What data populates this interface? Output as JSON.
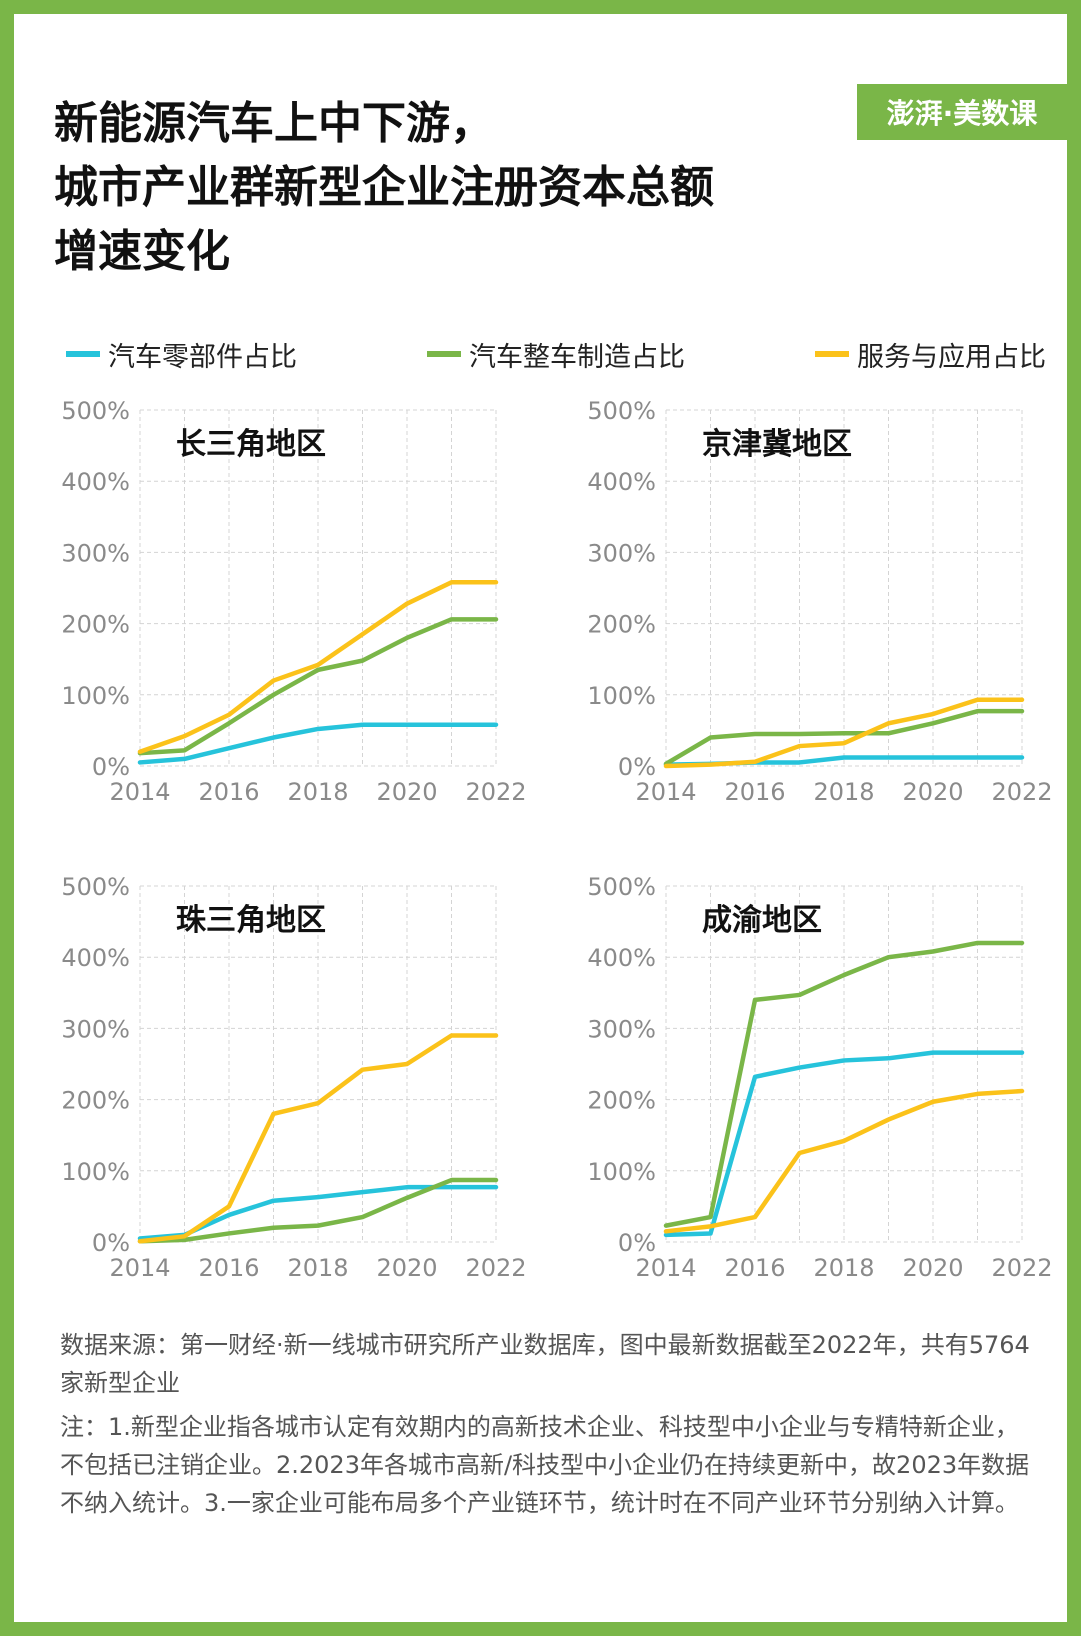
{
  "title_lines": [
    "新能源汽车上中下游，",
    "城市产业群新型企业注册资本总额",
    "增速变化"
  ],
  "brand": "澎湃·美数课",
  "colors": {
    "parts": "#26c3db",
    "vehicle": "#7ab648",
    "service": "#fbc21a",
    "frame": "#7ab648",
    "grid": "#d4d4d4"
  },
  "legend": [
    {
      "label": "汽车零部件占比",
      "color": "#26c3db"
    },
    {
      "label": "汽车整车制造占比",
      "color": "#7ab648"
    },
    {
      "label": "服务与应用占比",
      "color": "#fbc21a"
    }
  ],
  "chart_data": [
    {
      "type": "line",
      "title": "长三角地区",
      "x": [
        2014,
        2015,
        2016,
        2017,
        2018,
        2019,
        2020,
        2021,
        2022
      ],
      "xticks": [
        "2014",
        "2016",
        "2018",
        "2020",
        "2022"
      ],
      "yticks": [
        "0%",
        "100%",
        "200%",
        "300%",
        "400%",
        "500%"
      ],
      "ylim": [
        0,
        500
      ],
      "grid": true,
      "series": [
        {
          "name": "汽车零部件占比",
          "values": [
            5,
            10,
            25,
            40,
            52,
            58,
            58,
            58,
            58
          ]
        },
        {
          "name": "汽车整车制造占比",
          "values": [
            18,
            22,
            60,
            100,
            135,
            148,
            180,
            206,
            206
          ]
        },
        {
          "name": "服务与应用占比",
          "values": [
            20,
            42,
            72,
            120,
            142,
            185,
            228,
            258,
            258
          ]
        }
      ]
    },
    {
      "type": "line",
      "title": "京津冀地区",
      "x": [
        2014,
        2015,
        2016,
        2017,
        2018,
        2019,
        2020,
        2021,
        2022
      ],
      "xticks": [
        "2014",
        "2016",
        "2018",
        "2020",
        "2022"
      ],
      "yticks": [
        "0%",
        "100%",
        "200%",
        "300%",
        "400%",
        "500%"
      ],
      "ylim": [
        0,
        500
      ],
      "grid": true,
      "series": [
        {
          "name": "汽车零部件占比",
          "values": [
            2,
            3,
            5,
            5,
            12,
            12,
            12,
            12,
            12
          ]
        },
        {
          "name": "汽车整车制造占比",
          "values": [
            3,
            40,
            45,
            45,
            46,
            46,
            60,
            77,
            77
          ]
        },
        {
          "name": "服务与应用占比",
          "values": [
            0,
            2,
            6,
            28,
            32,
            60,
            73,
            93,
            93
          ]
        }
      ]
    },
    {
      "type": "line",
      "title": "珠三角地区",
      "x": [
        2014,
        2015,
        2016,
        2017,
        2018,
        2019,
        2020,
        2021,
        2022
      ],
      "xticks": [
        "2014",
        "2016",
        "2018",
        "2020",
        "2022"
      ],
      "yticks": [
        "0%",
        "100%",
        "200%",
        "300%",
        "400%",
        "500%"
      ],
      "ylim": [
        0,
        500
      ],
      "grid": true,
      "series": [
        {
          "name": "汽车零部件占比",
          "values": [
            5,
            10,
            38,
            58,
            63,
            70,
            77,
            77,
            77
          ]
        },
        {
          "name": "汽车整车制造占比",
          "values": [
            1,
            3,
            12,
            20,
            23,
            35,
            62,
            87,
            87
          ]
        },
        {
          "name": "服务与应用占比",
          "values": [
            1,
            8,
            50,
            180,
            195,
            242,
            250,
            290,
            290
          ]
        }
      ]
    },
    {
      "type": "line",
      "title": "成渝地区",
      "x": [
        2014,
        2015,
        2016,
        2017,
        2018,
        2019,
        2020,
        2021,
        2022
      ],
      "xticks": [
        "2014",
        "2016",
        "2018",
        "2020",
        "2022"
      ],
      "yticks": [
        "0%",
        "100%",
        "200%",
        "300%",
        "400%",
        "500%"
      ],
      "ylim": [
        0,
        500
      ],
      "grid": true,
      "series": [
        {
          "name": "汽车零部件占比",
          "values": [
            10,
            12,
            232,
            245,
            255,
            258,
            266,
            266,
            266
          ]
        },
        {
          "name": "汽车整车制造占比",
          "values": [
            23,
            35,
            340,
            347,
            375,
            400,
            408,
            420,
            420
          ]
        },
        {
          "name": "服务与应用占比",
          "values": [
            15,
            22,
            35,
            125,
            142,
            172,
            197,
            208,
            212
          ]
        }
      ]
    }
  ],
  "source": "数据来源：第一财经·新一线城市研究所产业数据库，图中最新数据截至2022年，共有5764家新型企业",
  "note": "注：1.新型企业指各城市认定有效期内的高新技术企业、科技型中小企业与专精特新企业，不包括已注销企业。2.2023年各城市高新/科技型中小企业仍在持续更新中，故2023年数据不纳入统计。3.一家企业可能布局多个产业链环节，统计时在不同产业环节分别纳入计算。"
}
